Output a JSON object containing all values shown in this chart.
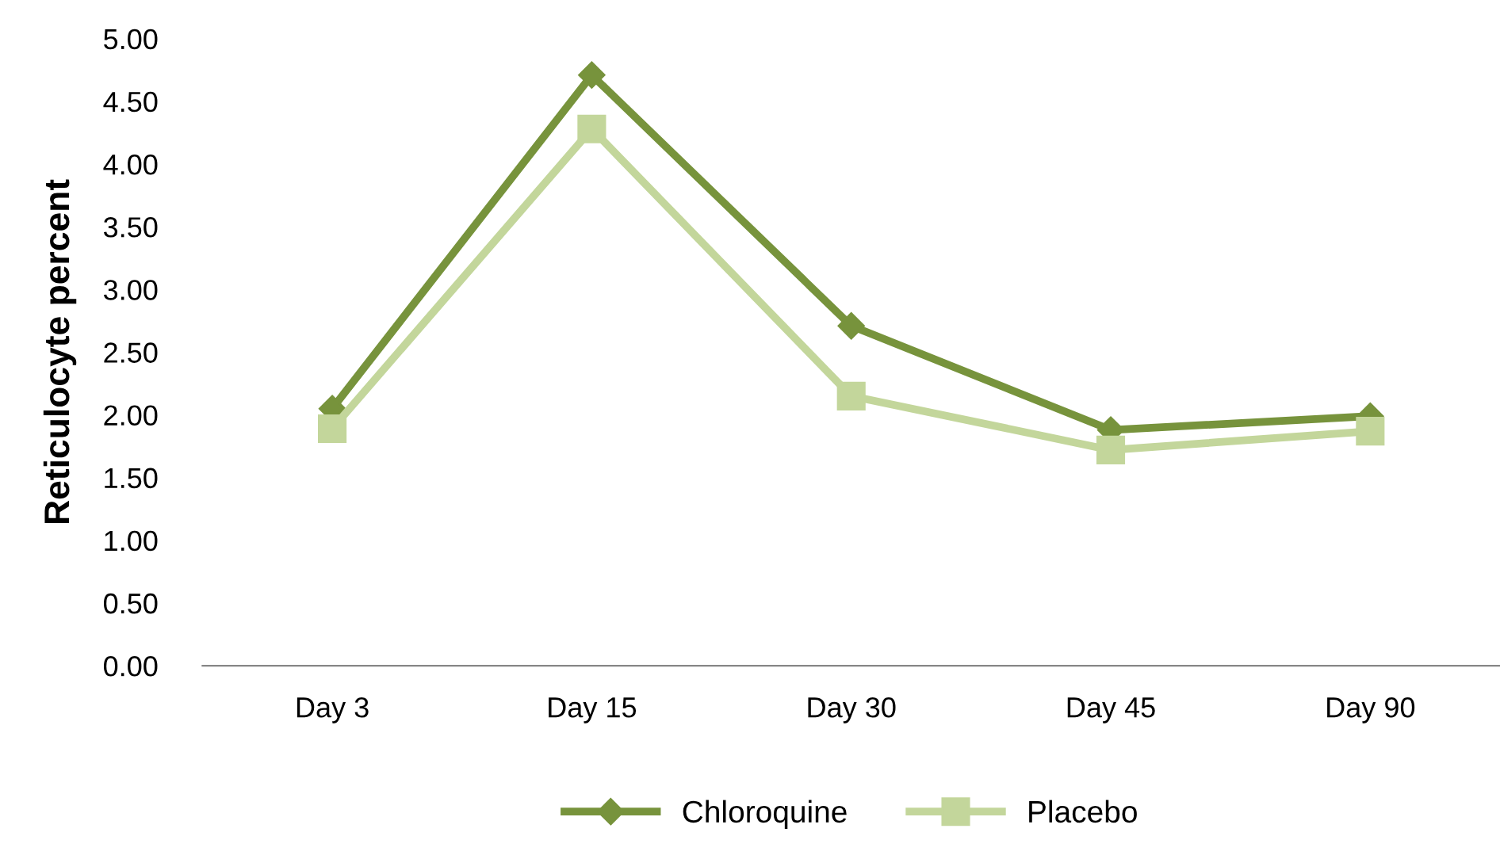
{
  "chart_data": {
    "type": "line",
    "ylabel": "Reticulocyte percent",
    "categories": [
      "Day 3",
      "Day 15",
      "Day 30",
      "Day 45",
      "Day 90"
    ],
    "series": [
      {
        "name": "Chloroquine",
        "color": "#77933c",
        "marker": "diamond",
        "values": [
          2.05,
          4.71,
          2.71,
          1.88,
          1.99
        ]
      },
      {
        "name": "Placebo",
        "color": "#c3d69b",
        "marker": "square",
        "values": [
          1.89,
          4.28,
          2.15,
          1.72,
          1.87
        ]
      }
    ],
    "ylim": [
      0,
      5
    ],
    "yticks": [
      {
        "value": 0,
        "label": "0.00"
      },
      {
        "value": 0.5,
        "label": "0.50"
      },
      {
        "value": 1,
        "label": "1.00"
      },
      {
        "value": 1.5,
        "label": "1.50"
      },
      {
        "value": 2,
        "label": "2.00"
      },
      {
        "value": 2.5,
        "label": "2.50"
      },
      {
        "value": 3,
        "label": "3.00"
      },
      {
        "value": 3.5,
        "label": "3.50"
      },
      {
        "value": 4,
        "label": "4.00"
      },
      {
        "value": 4.5,
        "label": "4.50"
      },
      {
        "value": 5,
        "label": "5.00"
      }
    ],
    "grid": false,
    "legend": "bottom",
    "line_style": "solid"
  }
}
